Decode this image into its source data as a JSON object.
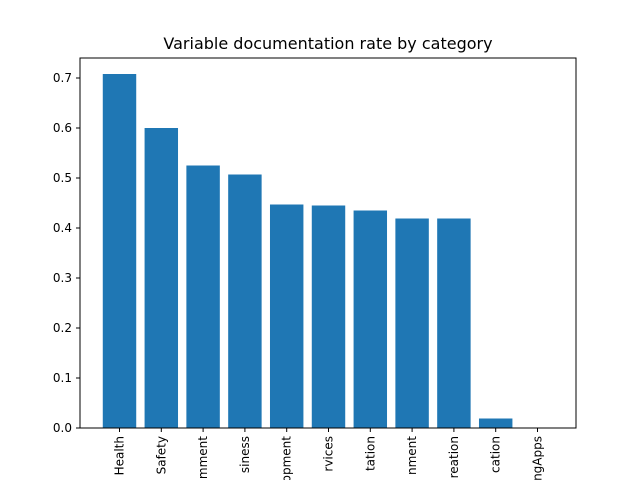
{
  "chart_data": {
    "type": "bar",
    "title": "Variable documentation rate by category",
    "xlabel": "",
    "ylabel": "",
    "categories": [
      "Health",
      "Safety",
      "mment",
      "siness",
      "opment",
      "rvices",
      "tation",
      "nment",
      "reation",
      "cation",
      "ngApps"
    ],
    "values": [
      0.708,
      0.6,
      0.525,
      0.507,
      0.447,
      0.445,
      0.435,
      0.419,
      0.419,
      0.019,
      0.0
    ],
    "ylim": [
      0,
      0.74
    ],
    "yticks": [
      0.0,
      0.1,
      0.2,
      0.3,
      0.4,
      0.5,
      0.6,
      0.7
    ],
    "ytick_labels": [
      "0.0",
      "0.1",
      "0.2",
      "0.3",
      "0.4",
      "0.5",
      "0.6",
      "0.7"
    ],
    "bar_color": "#1f77b4",
    "grid": false,
    "legend": "none"
  }
}
